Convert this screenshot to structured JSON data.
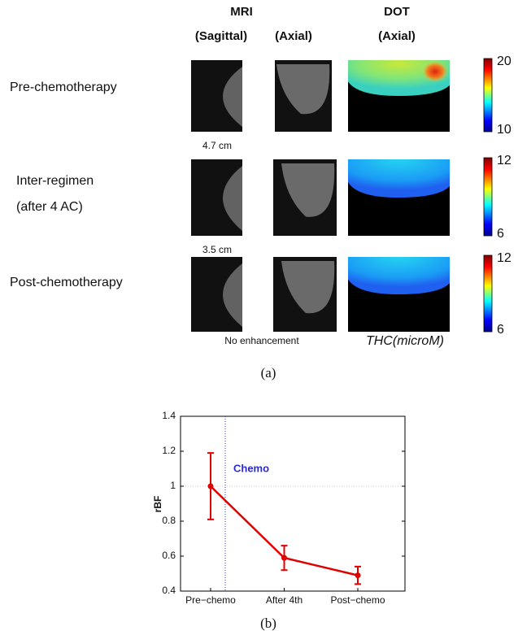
{
  "panel_a": {
    "headers": {
      "mri": "MRI",
      "sagittal": "(Sagittal)",
      "axial": "(Axial)",
      "dot": "DOT",
      "dot_axial": "(Axial)"
    },
    "rows": [
      {
        "label": [
          "Pre-chemotherapy"
        ],
        "size": "4.7 cm",
        "scale": [
          20,
          10
        ]
      },
      {
        "label": [
          "Inter-regimen",
          "(after 4 AC)"
        ],
        "size": "3.5 cm",
        "scale": [
          12,
          6
        ]
      },
      {
        "label": [
          "Post-chemotherapy"
        ],
        "size": "No enhancement",
        "scale": [
          12,
          6
        ]
      }
    ],
    "unit": "THC(microM)",
    "caption": "(a)"
  },
  "chart_data": {
    "type": "line",
    "ylabel": "rBF",
    "annotation": "Chemo",
    "categories": [
      "Pre−chemo",
      "After 4th",
      "Post−chemo"
    ],
    "series": [
      {
        "color": "#e00000",
        "values": [
          1.0,
          0.59,
          0.49
        ],
        "errors": [
          0.19,
          0.07,
          0.05
        ]
      }
    ],
    "ylim": [
      0.4,
      1.4
    ],
    "yticks": [
      0.4,
      0.6,
      0.8,
      1,
      1.2,
      1.4
    ],
    "ref_y": 1,
    "caption": "(b)"
  }
}
